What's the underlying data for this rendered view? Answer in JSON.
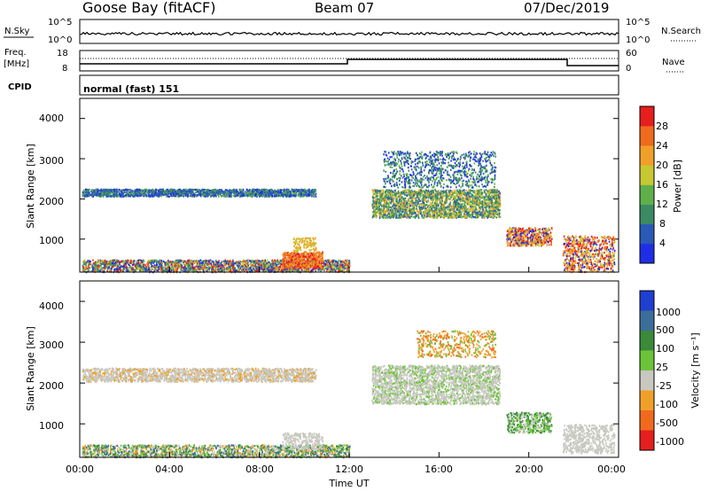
{
  "header": {
    "station": "Goose Bay (fitACF)",
    "beam": "Beam 07",
    "date": "07/Dec/2019"
  },
  "panels": {
    "nsky": {
      "left_label": "N.Sky",
      "left_ticks": [
        "10^5",
        "10^0"
      ],
      "right_ticks": [
        "10^5",
        "10^0"
      ],
      "right_label": "N.Search"
    },
    "freq": {
      "left_label_1": "Freq.",
      "left_label_2": "[MHz]",
      "left_ticks": [
        "18",
        "8"
      ],
      "right_ticks": [
        "60",
        "0"
      ],
      "right_label": "Nave"
    },
    "cpid": {
      "label": "CPID",
      "text": "normal (fast) 151"
    }
  },
  "x_axis": {
    "title": "Time UT",
    "ticks": [
      "00:00",
      "04:00",
      "08:00",
      "12:00",
      "16:00",
      "20:00",
      "00:00"
    ]
  },
  "power_panel": {
    "ylabel": "Slant Range [km]",
    "yticks": [
      "1000",
      "2000",
      "3000",
      "4000"
    ],
    "colorbar_label": "Power [dB]",
    "colorbar_ticks": [
      "4",
      "8",
      "12",
      "16",
      "20",
      "24",
      "28"
    ],
    "colors": [
      "#1f2ee6",
      "#2a5ab6",
      "#3c8a64",
      "#5fb04a",
      "#c8c832",
      "#f0a028",
      "#f06a1e",
      "#e61e1e"
    ]
  },
  "velocity_panel": {
    "ylabel": "Slant Range [km]",
    "yticks": [
      "1000",
      "2000",
      "3000",
      "4000"
    ],
    "colorbar_label": "Velocity [m s⁻¹]",
    "colorbar_ticks": [
      "1000",
      "500",
      "100",
      "25",
      "-25",
      "-100",
      "-500",
      "-1000"
    ],
    "colors": [
      "#1f3fd0",
      "#3c6e9c",
      "#3a8a3a",
      "#6cc43a",
      "#c8c8c0",
      "#f0a028",
      "#f06a1e",
      "#e61e1e"
    ]
  },
  "chart_data": [
    {
      "type": "heatmap",
      "title": "",
      "xlabel": "Time UT",
      "ylabel": "Slant Range [km]",
      "xlim": [
        0,
        24
      ],
      "ylim": [
        180,
        4500
      ],
      "color_quantity": "Power [dB]",
      "features": [
        {
          "t": [
            0,
            10.5
          ],
          "range_km": [
            2050,
            2250
          ],
          "power_db": "8-16"
        },
        {
          "t": [
            13,
            19
          ],
          "range_km": [
            1500,
            3200
          ],
          "power_db": "8-24"
        },
        {
          "t": [
            19,
            21
          ],
          "range_km": [
            800,
            1300
          ],
          "power_db": "16-28"
        },
        {
          "t": [
            21.5,
            23.8
          ],
          "range_km": [
            200,
            1100
          ],
          "power_db": "16-28"
        },
        {
          "t": [
            0,
            12
          ],
          "range_km": [
            200,
            500
          ],
          "power_db": "4-28"
        }
      ]
    },
    {
      "type": "heatmap",
      "title": "",
      "xlabel": "Time UT",
      "ylabel": "Slant Range [km]",
      "xlim": [
        0,
        24
      ],
      "ylim": [
        180,
        4500
      ],
      "color_quantity": "Velocity [m s-1]",
      "features": [
        {
          "t": [
            0,
            10.5
          ],
          "range_km": [
            2050,
            2350
          ],
          "velocity": "-25 to 25"
        },
        {
          "t": [
            13,
            19
          ],
          "range_km": [
            1500,
            2400
          ],
          "velocity": "-25 to 25"
        },
        {
          "t": [
            15,
            18.5
          ],
          "range_km": [
            2700,
            3300
          ],
          "velocity": "-100 to -500"
        },
        {
          "t": [
            19,
            21
          ],
          "range_km": [
            800,
            1300
          ],
          "velocity": "25 to 100"
        },
        {
          "t": [
            21.5,
            23.8
          ],
          "range_km": [
            300,
            1000
          ],
          "velocity": "-25 to 25"
        }
      ]
    }
  ]
}
